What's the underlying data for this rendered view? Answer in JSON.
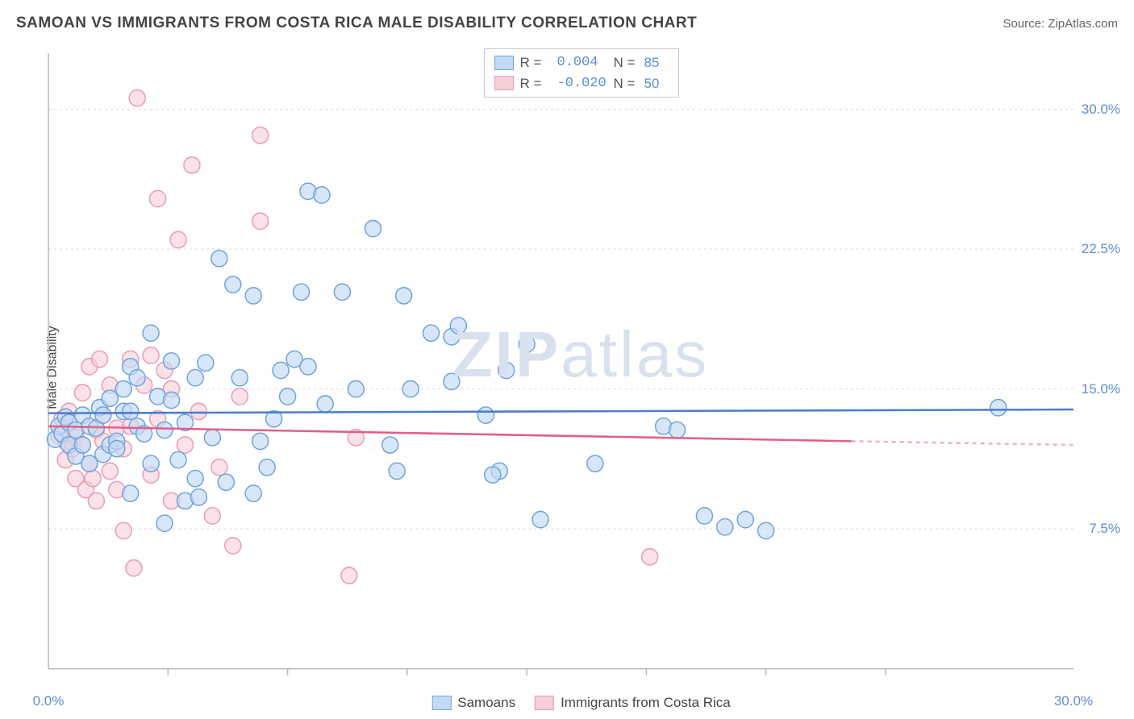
{
  "title": "SAMOAN VS IMMIGRANTS FROM COSTA RICA MALE DISABILITY CORRELATION CHART",
  "source": "Source: ZipAtlas.com",
  "watermark": "ZIPatlas",
  "ylabel": "Male Disability",
  "chart": {
    "type": "scatter",
    "xlim": [
      0,
      30
    ],
    "ylim": [
      0,
      33
    ],
    "x_axis_label_min": "0.0%",
    "x_axis_label_max": "30.0%",
    "y_tick_labels": [
      "7.5%",
      "15.0%",
      "22.5%",
      "30.0%"
    ],
    "y_tick_values": [
      7.5,
      15,
      22.5,
      30
    ],
    "x_minor_ticks": [
      3.5,
      7,
      10.5,
      14,
      17.5,
      21,
      24.5
    ],
    "grid_color": "#d9d9d9",
    "axis_color": "#b8b8b8",
    "tick_label_color": "#5b8dd6",
    "background": "#ffffff",
    "marker_radius": 10,
    "marker_stroke_width": 1.5,
    "series": [
      {
        "name": "Samoans",
        "label": "Samoans",
        "fill": "#c3daf4",
        "stroke": "#6fa3e0",
        "opacity": 0.65,
        "line_color": "#4a7fc9",
        "line_width": 2.5,
        "trend_y_start": 13.7,
        "trend_y_end": 13.9,
        "trend_x_end": 30,
        "trend_dash_after": 30,
        "R": "0.004",
        "N": "85",
        "points": [
          [
            0.2,
            12.3
          ],
          [
            0.3,
            13.0
          ],
          [
            0.4,
            12.6
          ],
          [
            0.5,
            13.5
          ],
          [
            0.6,
            12.0
          ],
          [
            0.6,
            13.2
          ],
          [
            0.8,
            12.8
          ],
          [
            0.8,
            11.4
          ],
          [
            1.0,
            13.6
          ],
          [
            1.0,
            12.0
          ],
          [
            1.2,
            13.0
          ],
          [
            1.2,
            11.0
          ],
          [
            1.4,
            12.9
          ],
          [
            1.5,
            14.0
          ],
          [
            1.6,
            11.5
          ],
          [
            1.6,
            13.6
          ],
          [
            1.8,
            12.0
          ],
          [
            1.8,
            14.5
          ],
          [
            2.0,
            12.2
          ],
          [
            2.0,
            11.8
          ],
          [
            2.2,
            13.8
          ],
          [
            2.2,
            15.0
          ],
          [
            2.4,
            16.2
          ],
          [
            2.4,
            13.8
          ],
          [
            2.4,
            9.4
          ],
          [
            2.6,
            15.6
          ],
          [
            2.6,
            13.0
          ],
          [
            2.8,
            12.6
          ],
          [
            3.0,
            11.0
          ],
          [
            3.0,
            18.0
          ],
          [
            3.2,
            14.6
          ],
          [
            3.4,
            12.8
          ],
          [
            3.4,
            7.8
          ],
          [
            3.6,
            16.5
          ],
          [
            3.6,
            14.4
          ],
          [
            3.8,
            11.2
          ],
          [
            4.0,
            9.0
          ],
          [
            4.0,
            13.2
          ],
          [
            4.3,
            15.6
          ],
          [
            4.3,
            10.2
          ],
          [
            4.4,
            9.2
          ],
          [
            4.6,
            16.4
          ],
          [
            4.8,
            12.4
          ],
          [
            5.0,
            22.0
          ],
          [
            5.2,
            10.0
          ],
          [
            5.4,
            20.6
          ],
          [
            5.6,
            15.6
          ],
          [
            6.0,
            9.4
          ],
          [
            6.0,
            20.0
          ],
          [
            6.2,
            12.2
          ],
          [
            6.4,
            10.8
          ],
          [
            6.6,
            13.4
          ],
          [
            6.8,
            16.0
          ],
          [
            7.0,
            14.6
          ],
          [
            7.2,
            16.6
          ],
          [
            7.4,
            20.2
          ],
          [
            7.6,
            25.6
          ],
          [
            7.6,
            16.2
          ],
          [
            8.0,
            25.4
          ],
          [
            8.1,
            14.2
          ],
          [
            8.6,
            20.2
          ],
          [
            9.0,
            15.0
          ],
          [
            9.5,
            23.6
          ],
          [
            10.0,
            12.0
          ],
          [
            10.2,
            10.6
          ],
          [
            10.4,
            20.0
          ],
          [
            10.6,
            15.0
          ],
          [
            11.2,
            18.0
          ],
          [
            11.8,
            15.4
          ],
          [
            11.8,
            17.8
          ],
          [
            12.8,
            13.6
          ],
          [
            13.2,
            10.6
          ],
          [
            13.4,
            16.0
          ],
          [
            14.0,
            17.4
          ],
          [
            14.4,
            8.0
          ],
          [
            16.0,
            11.0
          ],
          [
            18.0,
            13.0
          ],
          [
            18.4,
            12.8
          ],
          [
            19.2,
            8.2
          ],
          [
            19.8,
            7.6
          ],
          [
            21.0,
            7.4
          ],
          [
            20.4,
            8.0
          ],
          [
            27.8,
            14.0
          ],
          [
            13.0,
            10.4
          ],
          [
            12.0,
            18.4
          ]
        ]
      },
      {
        "name": "Immigrants from Costa Rica",
        "label": "Immigrants from Costa Rica",
        "fill": "#f6cfd9",
        "stroke": "#ea9cb4",
        "opacity": 0.6,
        "line_color": "#e0608a",
        "line_width": 2.5,
        "trend_y_start": 13.0,
        "trend_y_end": 12.2,
        "trend_x_end": 23.5,
        "trend_dash_after": 23.5,
        "trend_dash_y_end": 12.0,
        "R": "-0.020",
        "N": "50",
        "points": [
          [
            0.3,
            12.5
          ],
          [
            0.4,
            13.4
          ],
          [
            0.5,
            12.2
          ],
          [
            0.5,
            11.2
          ],
          [
            0.6,
            13.8
          ],
          [
            0.7,
            11.8
          ],
          [
            0.8,
            12.4
          ],
          [
            0.8,
            10.2
          ],
          [
            1.0,
            14.8
          ],
          [
            1.0,
            12.0
          ],
          [
            1.1,
            9.6
          ],
          [
            1.2,
            11.0
          ],
          [
            1.2,
            16.2
          ],
          [
            1.3,
            10.2
          ],
          [
            1.4,
            12.8
          ],
          [
            1.4,
            9.0
          ],
          [
            1.5,
            16.6
          ],
          [
            1.6,
            12.2
          ],
          [
            1.6,
            13.6
          ],
          [
            1.8,
            10.6
          ],
          [
            1.8,
            15.2
          ],
          [
            2.0,
            9.6
          ],
          [
            2.0,
            12.9
          ],
          [
            2.2,
            11.8
          ],
          [
            2.2,
            7.4
          ],
          [
            2.4,
            13.0
          ],
          [
            2.4,
            16.6
          ],
          [
            2.5,
            5.4
          ],
          [
            2.6,
            30.6
          ],
          [
            2.8,
            15.2
          ],
          [
            3.0,
            10.4
          ],
          [
            3.0,
            16.8
          ],
          [
            3.2,
            13.4
          ],
          [
            3.2,
            25.2
          ],
          [
            3.4,
            16.0
          ],
          [
            3.6,
            9.0
          ],
          [
            3.6,
            15.0
          ],
          [
            3.8,
            23.0
          ],
          [
            4.0,
            12.0
          ],
          [
            4.2,
            27.0
          ],
          [
            4.4,
            13.8
          ],
          [
            4.8,
            8.2
          ],
          [
            5.0,
            10.8
          ],
          [
            5.4,
            6.6
          ],
          [
            5.6,
            14.6
          ],
          [
            6.2,
            28.6
          ],
          [
            6.2,
            24.0
          ],
          [
            8.8,
            5.0
          ],
          [
            9.0,
            12.4
          ],
          [
            17.6,
            6.0
          ]
        ]
      }
    ]
  },
  "top_legend": {
    "r_label": "R = ",
    "n_label": "N = "
  },
  "bottom_legend_series1": "Samoans",
  "bottom_legend_series2": "Immigrants from Costa Rica"
}
